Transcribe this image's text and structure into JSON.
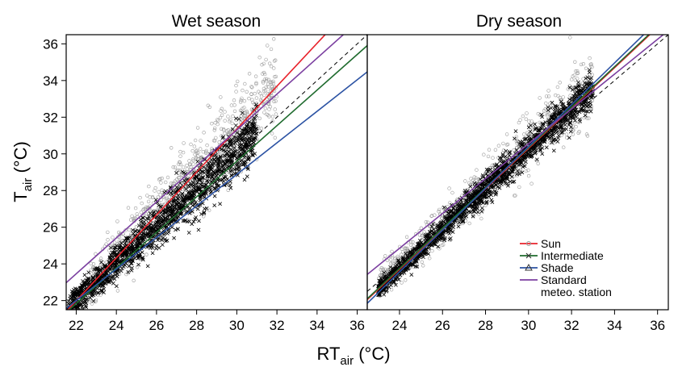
{
  "chart_data": [
    {
      "type": "scatter",
      "title": "Wet season",
      "xlabel": {
        "main": "RT",
        "sub": "air",
        "tail": " (°C)"
      },
      "ylabel": {
        "main": "T",
        "sub": "air",
        "tail": " (°C)"
      },
      "xlim": [
        21.5,
        36.5
      ],
      "ylim": [
        21.5,
        36.5
      ],
      "xticks": [
        "22",
        "24",
        "26",
        "28",
        "30",
        "32",
        "34",
        "36"
      ],
      "yticks": [
        "22",
        "24",
        "26",
        "28",
        "30",
        "32",
        "34",
        "36"
      ],
      "grid": false,
      "reference_line": "1:1 dashed",
      "series": [
        {
          "name": "Sun",
          "color": "#e8222b",
          "marker": "circle",
          "fit": {
            "slope": 1.17,
            "intercept": -3.75
          }
        },
        {
          "name": "Intermediate",
          "color": "#1f6b2e",
          "marker": "x",
          "fit": {
            "slope": 0.97,
            "intercept": 0.5
          }
        },
        {
          "name": "Shade",
          "color": "#2b52a3",
          "marker": "triangle",
          "fit": {
            "slope": 0.86,
            "intercept": 3.08
          }
        },
        {
          "name": "Standard meteo. station",
          "color": "#7b3fa0",
          "marker": "none",
          "fit": {
            "slope": 0.98,
            "intercept": 1.9
          }
        }
      ],
      "clouds": [
        {
          "kind": "circle",
          "color": "#9a9a9a",
          "n": 850,
          "x": [
            22.6,
            32.0
          ],
          "slope": 1.17,
          "intercept": -3.7,
          "sd": 1.05
        },
        {
          "kind": "x",
          "color": "#000000",
          "n": 1500,
          "x": [
            21.6,
            31.0
          ],
          "slope": 1.0,
          "intercept": 0.0,
          "sd": 0.7
        }
      ]
    },
    {
      "type": "scatter",
      "title": "Dry season",
      "xlim": [
        22.5,
        36.5
      ],
      "ylim": [
        21.5,
        36.5
      ],
      "xticks": [
        "24",
        "26",
        "28",
        "30",
        "32",
        "34",
        "36"
      ],
      "grid": false,
      "reference_line": "1:1 dashed",
      "series": [
        {
          "name": "Sun",
          "color": "#e8222b",
          "marker": "circle",
          "fit": {
            "slope": 1.1,
            "intercept": -2.7
          }
        },
        {
          "name": "Intermediate",
          "color": "#1f6b2e",
          "marker": "x",
          "fit": {
            "slope": 1.1,
            "intercept": -2.65
          }
        },
        {
          "name": "Shade",
          "color": "#2b52a3",
          "marker": "triangle",
          "fit": {
            "slope": 1.14,
            "intercept": -3.8
          }
        },
        {
          "name": "Standard meteo. station",
          "color": "#7b3fa0",
          "marker": "none",
          "fit": {
            "slope": 0.95,
            "intercept": 2.05
          }
        }
      ],
      "clouds": [
        {
          "kind": "circle",
          "color": "#9a9a9a",
          "n": 800,
          "x": [
            23.0,
            33.0
          ],
          "slope": 1.1,
          "intercept": -2.5,
          "sd": 0.8
        },
        {
          "kind": "x",
          "color": "#000000",
          "n": 1700,
          "x": [
            23.0,
            33.0
          ],
          "slope": 1.1,
          "intercept": -2.7,
          "sd": 0.45
        }
      ]
    }
  ],
  "legend": {
    "placement": "bottom-right of Dry season panel",
    "items": [
      {
        "label": "Sun",
        "color": "#e8222b",
        "marker": "circle"
      },
      {
        "label": "Intermediate",
        "color": "#1f6b2e",
        "marker": "x"
      },
      {
        "label": "Shade",
        "color": "#2b52a3",
        "marker": "triangle"
      },
      {
        "label": "Standard",
        "label2": "meteo. station",
        "color": "#7b3fa0",
        "marker": "none"
      }
    ]
  }
}
